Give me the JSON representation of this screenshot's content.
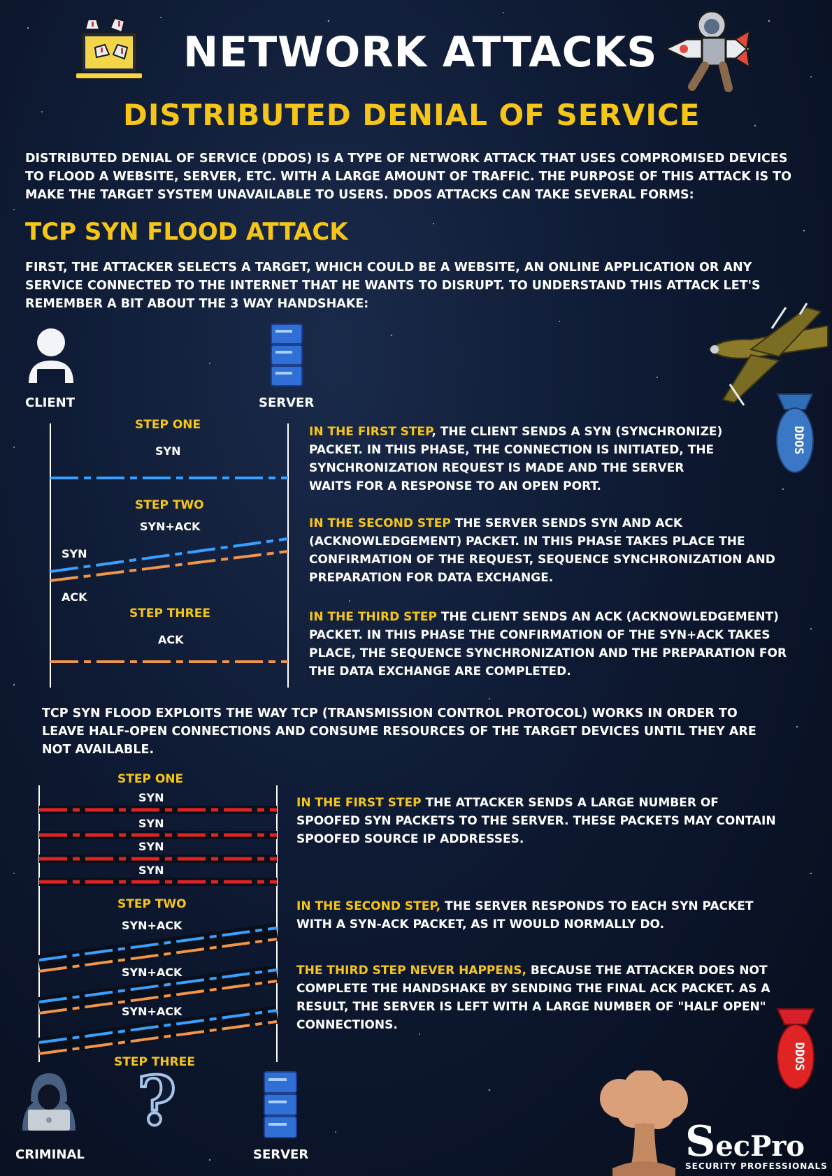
{
  "header": {
    "title": "NETWORK ATTACKS",
    "subtitle": "DISTRIBUTED DENIAL OF SERVICE"
  },
  "intro": "DISTRIBUTED DENIAL OF SERVICE (DDOS) IS A TYPE OF NETWORK ATTACK THAT USES COMPROMISED DEVICES TO FLOOD A WEBSITE, SERVER, ETC. WITH A LARGE AMOUNT OF TRAFFIC. THE PURPOSE OF THIS ATTACK IS TO MAKE THE TARGET SYSTEM UNAVAILABLE TO USERS. DDOS ATTACKS CAN TAKE SEVERAL FORMS:",
  "section": {
    "title": "TCP SYN FLOOD ATTACK",
    "intro": "FIRST, THE ATTACKER SELECTS A TARGET, WHICH COULD BE A WEBSITE, AN ONLINE APPLICATION OR ANY SERVICE CONNECTED TO THE INTERNET THAT HE WANTS TO DISRUPT. TO UNDERSTAND THIS ATTACK LET'S REMEMBER A BIT ABOUT THE 3 WAY HANDSHAKE:"
  },
  "handshake": {
    "client_label": "CLIENT",
    "server_label": "SERVER",
    "step1": {
      "title": "STEP ONE",
      "packet": "SYN",
      "desc_hl": "IN THE FIRST STEP",
      "desc": ", THE CLIENT SENDS A SYN (SYNCHRONIZE) PACKET. IN THIS PHASE, THE CONNECTION IS INITIATED, THE SYNCHRONIZATION REQUEST IS MADE AND THE SERVER WAITS FOR A RESPONSE TO AN OPEN PORT."
    },
    "step2": {
      "title": "STEP TWO",
      "packet": "SYN+ACK",
      "left_syn": "SYN",
      "left_ack": "ACK",
      "desc_hl": "IN THE SECOND STEP",
      "desc": " THE SERVER SENDS SYN AND ACK (ACKNOWLEDGEMENT) PACKET. IN THIS PHASE TAKES PLACE THE CONFIRMATION OF THE REQUEST, SEQUENCE SYNCHRONIZATION AND PREPARATION FOR DATA EXCHANGE."
    },
    "step3": {
      "title": "STEP THREE",
      "packet": "ACK",
      "desc_hl": "IN THE THIRD STEP",
      "desc": " THE CLIENT SENDS AN ACK (ACKNOWLEDGEMENT) PACKET. IN THIS PHASE THE CONFIRMATION OF THE SYN+ACK TAKES PLACE, THE SEQUENCE SYNCHRONIZATION AND THE PREPARATION FOR THE DATA EXCHANGE ARE COMPLETED."
    }
  },
  "flood_intro": "TCP SYN FLOOD EXPLOITS THE WAY TCP (TRANSMISSION CONTROL PROTOCOL) WORKS IN ORDER TO LEAVE HALF-OPEN CONNECTIONS AND CONSUME RESOURCES OF THE TARGET DEVICES UNTIL THEY ARE NOT AVAILABLE.",
  "flood": {
    "step1": {
      "title": "STEP ONE",
      "packets": [
        "SYN",
        "SYN",
        "SYN",
        "SYN"
      ],
      "desc_hl": "IN THE FIRST STEP",
      "desc": " THE ATTACKER SENDS A LARGE NUMBER OF SPOOFED SYN PACKETS TO THE SERVER. THESE PACKETS MAY CONTAIN SPOOFED SOURCE IP ADDRESSES."
    },
    "step2": {
      "title": "STEP TWO",
      "packets": [
        "SYN+ACK",
        "SYN+ACK",
        "SYN+ACK"
      ],
      "desc_hl": "IN THE SECOND STEP,",
      "desc": " THE SERVER RESPONDS TO EACH SYN PACKET WITH A SYN-ACK PACKET, AS IT WOULD NORMALLY DO."
    },
    "step3": {
      "title": "STEP THREE",
      "question": "?",
      "desc_hl": "THE THIRD STEP NEVER HAPPENS,",
      "desc": " BECAUSE THE ATTACKER DOES NOT COMPLETE THE HANDSHAKE BY SENDING THE FINAL ACK PACKET. AS A RESULT, THE SERVER IS LEFT WITH A LARGE NUMBER OF \"HALF OPEN\" CONNECTIONS."
    },
    "criminal_label": "CRIMINAL",
    "server_label": "SERVER"
  },
  "decor": {
    "bomb_text": "DDOS"
  },
  "brand": {
    "name_s": "S",
    "name_rest": "ecPro",
    "tagline": "SECURITY PROFESSIONALS"
  },
  "colors": {
    "yellow": "#f5c518",
    "blue": "#3aa0ff",
    "orange": "#f0954a",
    "red": "#e02424"
  }
}
